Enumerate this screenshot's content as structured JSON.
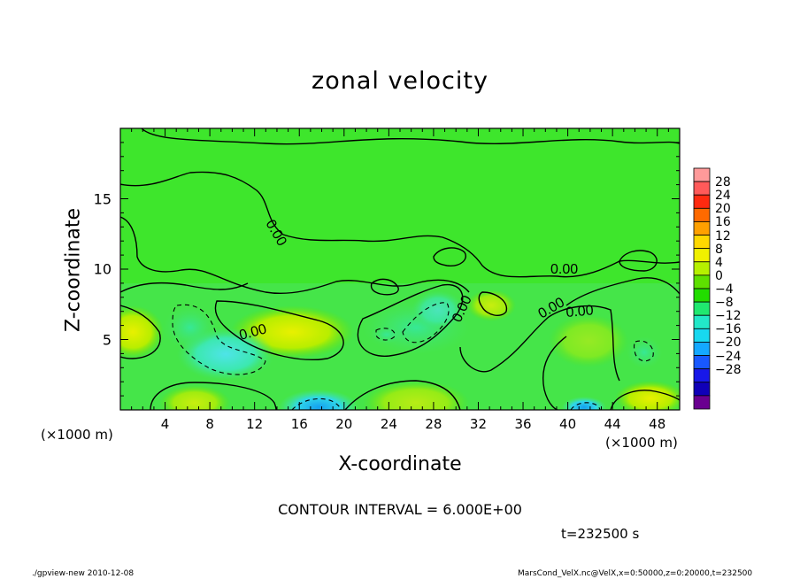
{
  "chart_data": {
    "type": "heatmap",
    "title": "zonal velocity",
    "xlabel": "X-coordinate",
    "ylabel": "Z-coordinate",
    "x_unit": "(×1000 m)",
    "x_unit_right": "(×1000 m)",
    "xlim": [
      0,
      50
    ],
    "ylim": [
      0,
      20
    ],
    "x_ticks": [
      4,
      8,
      12,
      16,
      20,
      24,
      28,
      32,
      36,
      40,
      44,
      48
    ],
    "y_ticks": [
      5,
      10,
      15
    ],
    "colorbar": {
      "labels": [
        "28",
        "24",
        "20",
        "16",
        "12",
        "8",
        "4",
        "0",
        "−4",
        "−8",
        "−12",
        "−16",
        "−20",
        "−24",
        "−28"
      ],
      "colors": [
        "#ff9a9a",
        "#ff5a5a",
        "#ff2a10",
        "#ff6a00",
        "#ffa000",
        "#ffd800",
        "#f0f000",
        "#b6f000",
        "#5ee000",
        "#22dd00",
        "#20e870",
        "#22e8c8",
        "#18d8f0",
        "#14a8ff",
        "#1858ff",
        "#1818e8",
        "#1000b8",
        "#6a0090"
      ]
    },
    "contour_labels": [
      "0.00",
      "0.00",
      "0.00",
      "0.00",
      "0.00",
      "0.00"
    ],
    "contour_interval": "CONTOUR INTERVAL = 6.000E+00",
    "grid": false
  },
  "annotations": {
    "time": "t=232500 s"
  },
  "footer": {
    "left": "./gpview-new  2010-12-08",
    "right": "MarsCond_VelX.nc@VelX,x=0:50000,z=0:20000,t=232500"
  }
}
